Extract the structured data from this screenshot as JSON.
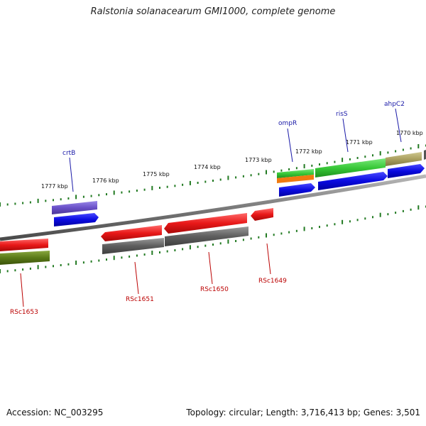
{
  "title": "Ralstonia solanacearum GMI1000, complete genome",
  "footer": {
    "accession": "Accession: NC_003295",
    "summary": "Topology: circular; Length: 3,716,413 bp; Genes: 3,501"
  },
  "scale_labels": [
    "1777 kbp",
    "1776 kbp",
    "1775 kbp",
    "1774 kbp",
    "1773 kbp",
    "1772 kbp",
    "1771 kbp",
    "1770 kbp"
  ],
  "top_genes": [
    "crtB",
    "ompR",
    "risS",
    "ahpC2"
  ],
  "bottom_genes": [
    "RSc1653",
    "RSc1651",
    "RSc1650",
    "RSc1649"
  ],
  "colors": {
    "top_label": "#1a1aa8",
    "bottom_label": "#bb0000",
    "tick": "#227a22",
    "backbone": "#7a7a7a",
    "gene_red": "#e81818",
    "cds_blue": "#0a0ae0",
    "cds_gray": "#606060",
    "cds_green": "#38c838",
    "cds_orange": "#f07a10",
    "cds_khaki": "#aaa060",
    "cds_olive": "#5a7a18",
    "cds_purple": "#6a50c8"
  }
}
